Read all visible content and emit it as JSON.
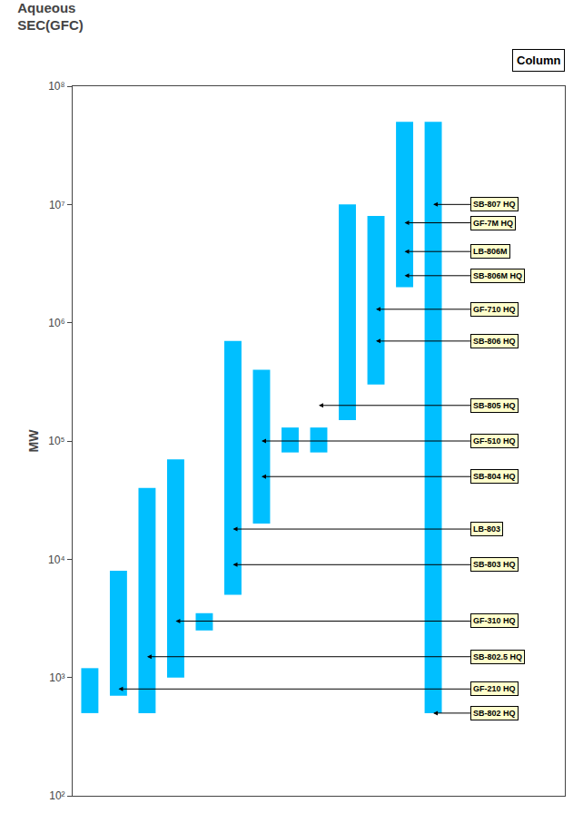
{
  "chart_data": {
    "type": "bar",
    "title": "Aqueous\nSEC(GFC)",
    "subtitle": "Column",
    "ylabel": "MW",
    "categories": [
      null,
      null,
      null,
      null,
      null,
      null,
      null,
      null,
      null,
      null,
      null,
      null,
      null
    ],
    "low": [
      500,
      700,
      500,
      1000,
      2500,
      5000,
      20000,
      80000,
      80000,
      150000,
      300000,
      2000000,
      500
    ],
    "high": [
      1200,
      8000,
      40000,
      70000,
      3500,
      700000,
      400000,
      130000,
      130000,
      10000000,
      8000000,
      50000000,
      50000000
    ],
    "color": "#00BFFF",
    "log": "y",
    "ylim": [
      100,
      100000000
    ],
    "yticks": [
      {
        "value": 100,
        "label": "10²"
      },
      {
        "value": 1000,
        "label": "10³"
      },
      {
        "value": 10000,
        "label": "10⁴"
      },
      {
        "value": 100000,
        "label": "10⁵"
      },
      {
        "value": 1000000,
        "label": "10⁶"
      },
      {
        "value": 10000000,
        "label": "10⁷"
      },
      {
        "value": 100000000,
        "label": "10⁸"
      }
    ],
    "grid": false,
    "tick_labels": "y",
    "annotations": [
      {
        "text": "SB-802 HQ",
        "bar": 12,
        "y": 500
      },
      {
        "text": "GF-210 HQ",
        "bar": 1,
        "y": 800
      },
      {
        "text": "SB-802.5 HQ",
        "bar": 2,
        "y": 1500
      },
      {
        "text": "GF-310 HQ",
        "bar": 3,
        "y": 3000
      },
      {
        "text": "SB-803 HQ",
        "bar": 5,
        "y": 9000
      },
      {
        "text": "LB-803",
        "bar": 5,
        "y": 18000
      },
      {
        "text": "SB-804 HQ",
        "bar": 6,
        "y": 50000
      },
      {
        "text": "GF-510 HQ",
        "bar": 6,
        "y": 100000
      },
      {
        "text": "SB-805 HQ",
        "bar": 8,
        "y": 200000
      },
      {
        "text": "SB-806 HQ",
        "bar": 10,
        "y": 700000
      },
      {
        "text": "GF-710 HQ",
        "bar": 10,
        "y": 1300000
      },
      {
        "text": "SB-806M HQ",
        "bar": 11,
        "y": 2500000
      },
      {
        "text": "LB-806M",
        "bar": 11,
        "y": 4000000
      },
      {
        "text": "GF-7M HQ",
        "bar": 11,
        "y": 7000000
      },
      {
        "text": "SB-807 HQ",
        "bar": 12,
        "y": 10000000
      }
    ]
  }
}
